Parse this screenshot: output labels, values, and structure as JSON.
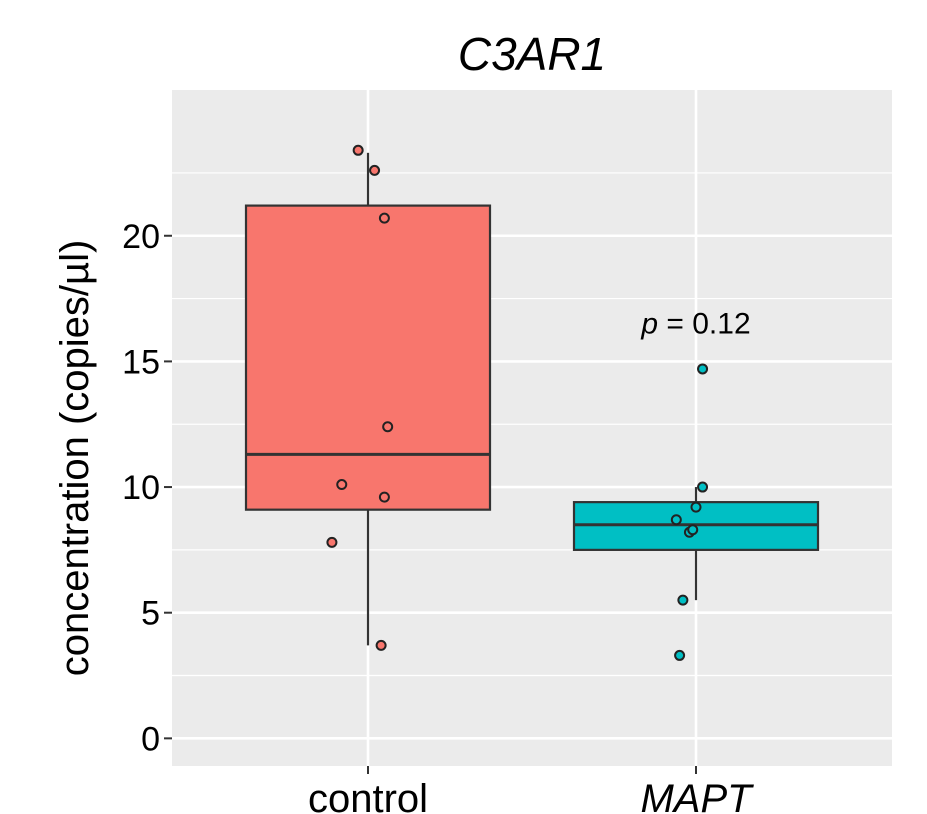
{
  "chart_data": {
    "type": "box",
    "title": "C3AR1",
    "xlabel": "",
    "ylabel": "concentration (copies/µl)",
    "ylim": [
      -1.1,
      25.8
    ],
    "yticks": [
      0,
      5,
      10,
      15,
      20
    ],
    "ytick_labels": [
      "0",
      "5",
      "10",
      "15",
      "20"
    ],
    "grid": true,
    "categories": [
      "control",
      "MAPT"
    ],
    "category_italic": [
      false,
      true
    ],
    "series": [
      {
        "category": "control",
        "color": "#F8766D",
        "box": {
          "q1": 9.1,
          "median": 11.3,
          "q3": 21.2,
          "whisker_low": 3.7,
          "whisker_high": 23.3
        },
        "points": [
          {
            "x": -0.03,
            "y": 23.4
          },
          {
            "x": 0.02,
            "y": 22.6
          },
          {
            "x": 0.05,
            "y": 20.7
          },
          {
            "x": 0.06,
            "y": 12.4
          },
          {
            "x": -0.08,
            "y": 10.1
          },
          {
            "x": 0.05,
            "y": 9.6
          },
          {
            "x": -0.11,
            "y": 7.8
          },
          {
            "x": 0.04,
            "y": 3.7
          }
        ]
      },
      {
        "category": "MAPT",
        "color": "#00BFC4",
        "box": {
          "q1": 7.5,
          "median": 8.5,
          "q3": 9.4,
          "whisker_low": 5.5,
          "whisker_high": 10.0
        },
        "points": [
          {
            "x": 0.02,
            "y": 14.7
          },
          {
            "x": 0.02,
            "y": 10.0
          },
          {
            "x": 0.0,
            "y": 9.2
          },
          {
            "x": -0.06,
            "y": 8.7
          },
          {
            "x": -0.02,
            "y": 8.2
          },
          {
            "x": -0.01,
            "y": 8.3
          },
          {
            "x": -0.04,
            "y": 5.5
          },
          {
            "x": -0.05,
            "y": 3.3
          }
        ]
      }
    ],
    "annotations": [
      {
        "category": "MAPT",
        "y": 16.5,
        "italic_part": "p",
        "text": " = 0.12"
      }
    ]
  }
}
